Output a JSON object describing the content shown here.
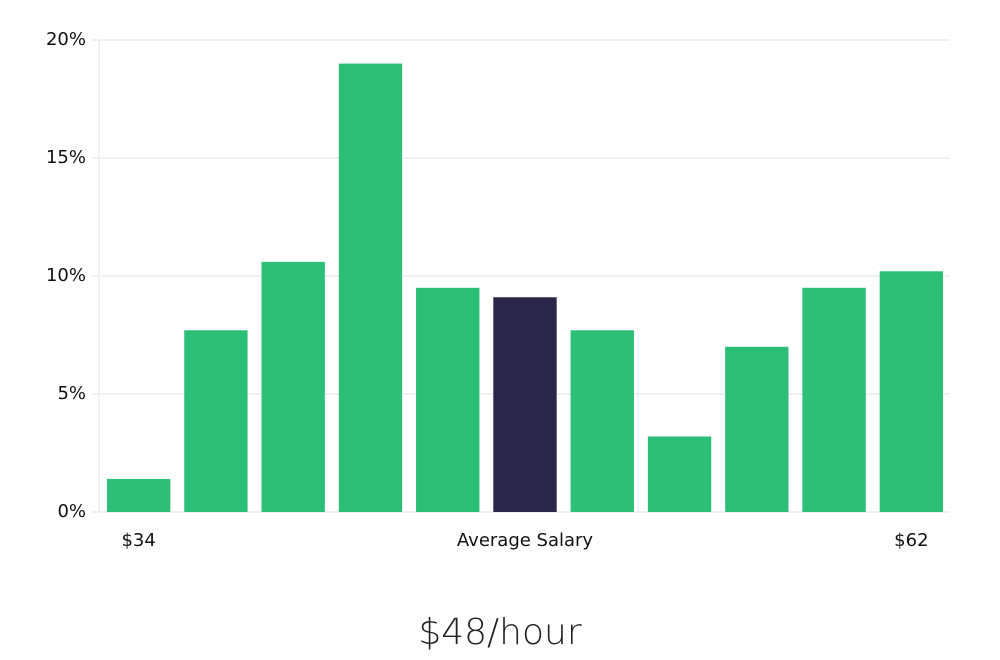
{
  "chart_data": {
    "type": "bar",
    "categories": [
      "$34",
      null,
      null,
      null,
      null,
      "Average Salary",
      null,
      null,
      null,
      null,
      "$62"
    ],
    "values": [
      1.4,
      7.7,
      10.6,
      19.0,
      9.5,
      9.1,
      7.7,
      3.2,
      7.0,
      9.5,
      10.2
    ],
    "colors": [
      "#2bbf77",
      "#2bbf77",
      "#2bbf77",
      "#2bbf77",
      "#2bbf77",
      "#29264a",
      "#2bbf77",
      "#2bbf77",
      "#2bbf77",
      "#2bbf77",
      "#2bbf77"
    ],
    "ylim": [
      0,
      20
    ],
    "yticks": [
      {
        "value": 0,
        "label": "0%"
      },
      {
        "value": 5,
        "label": "5%"
      },
      {
        "value": 10,
        "label": "10%"
      },
      {
        "value": 15,
        "label": "15%"
      },
      {
        "value": 20,
        "label": "20%"
      }
    ],
    "grid": true,
    "annotation": "$48/hour"
  }
}
